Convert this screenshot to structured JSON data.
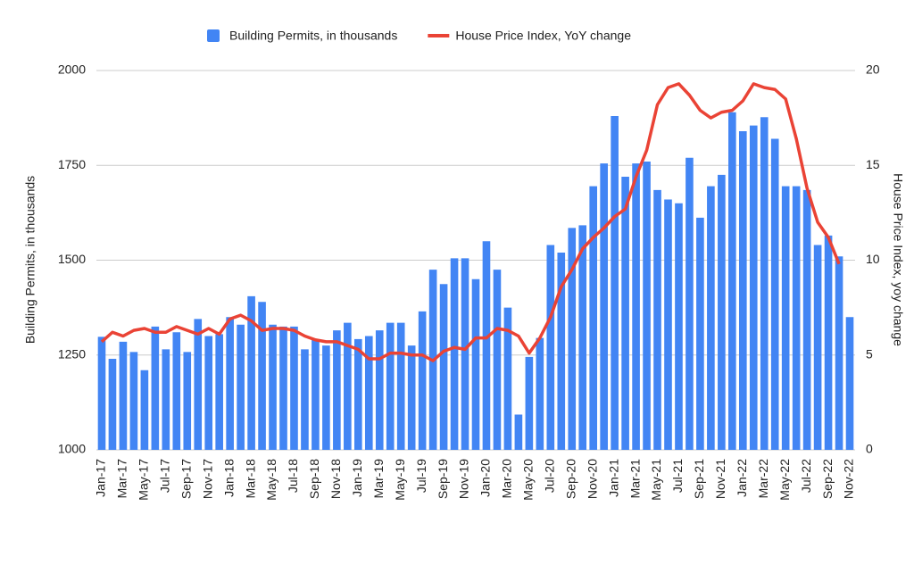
{
  "chart_data": {
    "type": "bar_line",
    "categories": [
      "Jan-17",
      null,
      "Mar-17",
      null,
      "May-17",
      null,
      "Jul-17",
      null,
      "Sep-17",
      null,
      "Nov-17",
      null,
      "Jan-18",
      null,
      "Mar-18",
      null,
      "May-18",
      null,
      "Jul-18",
      null,
      "Sep-18",
      null,
      "Nov-18",
      null,
      "Jan-19",
      null,
      "Mar-19",
      null,
      "May-19",
      null,
      "Jul-19",
      null,
      "Sep-19",
      null,
      "Nov-19",
      null,
      "Jan-20",
      null,
      "Mar-20",
      null,
      "May-20",
      null,
      "Jul-20",
      null,
      "Sep-20",
      null,
      "Nov-20",
      null,
      "Jan-21",
      null,
      "Mar-21",
      null,
      "May-21",
      null,
      "Jul-21",
      null,
      "Sep-21",
      null,
      "Nov-21",
      null,
      "Jan-22",
      null,
      "Mar-22",
      null,
      "May-22",
      null,
      "Jul-22",
      null,
      "Sep-22",
      null,
      "Nov-22"
    ],
    "series": [
      {
        "name": "Building Permits, in thousands",
        "color": "#4285f4",
        "kind": "bar",
        "axis": "y",
        "values": [
          1298,
          1240,
          1285,
          1258,
          1210,
          1325,
          1265,
          1310,
          1258,
          1345,
          1300,
          1305,
          1350,
          1330,
          1405,
          1390,
          1330,
          1325,
          1325,
          1265,
          1290,
          1275,
          1315,
          1335,
          1292,
          1300,
          1315,
          1335,
          1335,
          1275,
          1365,
          1475,
          1437,
          1505,
          1505,
          1450,
          1550,
          1475,
          1375,
          1093,
          1245,
          1295,
          1540,
          1520,
          1585,
          1592,
          1695,
          1755,
          1880,
          1720,
          1755,
          1760,
          1685,
          1660,
          1650,
          1770,
          1612,
          1695,
          1725,
          1890,
          1840,
          1855,
          1877,
          1820,
          1695,
          1695,
          1685,
          1540,
          1565,
          1510,
          1350
        ]
      },
      {
        "name": "House Price Index, YoY change",
        "color": "#ea4335",
        "kind": "line",
        "axis": "y2",
        "values": [
          5.7,
          6.2,
          6.0,
          6.3,
          6.4,
          6.2,
          6.2,
          6.5,
          6.3,
          6.1,
          6.4,
          6.1,
          6.9,
          7.1,
          6.8,
          6.3,
          6.4,
          6.4,
          6.3,
          6.0,
          5.8,
          5.7,
          5.7,
          5.5,
          5.3,
          4.8,
          4.8,
          5.1,
          5.1,
          5.0,
          5.0,
          4.7,
          5.2,
          5.4,
          5.3,
          5.9,
          5.9,
          6.4,
          6.3,
          6.0,
          5.1,
          5.9,
          7.0,
          8.6,
          9.5,
          10.6,
          11.2,
          11.7,
          12.3,
          12.7,
          14.4,
          15.8,
          18.2,
          19.1,
          19.3,
          18.7,
          17.9,
          17.5,
          17.8,
          17.9,
          18.4,
          19.3,
          19.1,
          19.0,
          18.5,
          16.4,
          13.8,
          12.0,
          11.2,
          9.8,
          null
        ]
      }
    ],
    "y_label": "Building Permits, in thousands",
    "y2_label": "House Price Index, yoy change",
    "ylim": [
      1000,
      2000
    ],
    "yticks": [
      1000,
      1250,
      1500,
      1750,
      2000
    ],
    "y2lim": [
      0,
      20
    ],
    "y2ticks": [
      0,
      5,
      10,
      15,
      20
    ],
    "grid": true,
    "legend": "top"
  }
}
